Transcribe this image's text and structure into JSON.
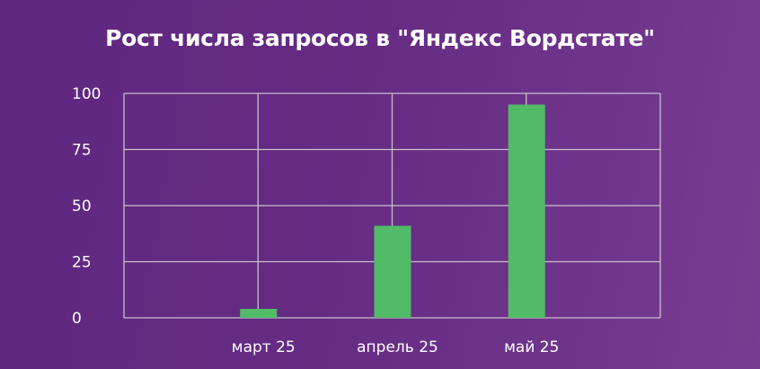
{
  "chart_data": {
    "type": "bar",
    "title": "Рост числа запросов в \"Яндекс Вордстате\"",
    "categories": [
      "март 25",
      "апрель 25",
      "май 25"
    ],
    "values": [
      4,
      41,
      95
    ],
    "xlabel": "",
    "ylabel": "",
    "ylim": [
      0,
      100
    ],
    "yticks": [
      0,
      25,
      50,
      75,
      100
    ],
    "grid": true,
    "colors": {
      "bar": "#52bb68",
      "grid": "#c8c0cc",
      "background": "#682d85",
      "text": "#ffffff"
    }
  }
}
